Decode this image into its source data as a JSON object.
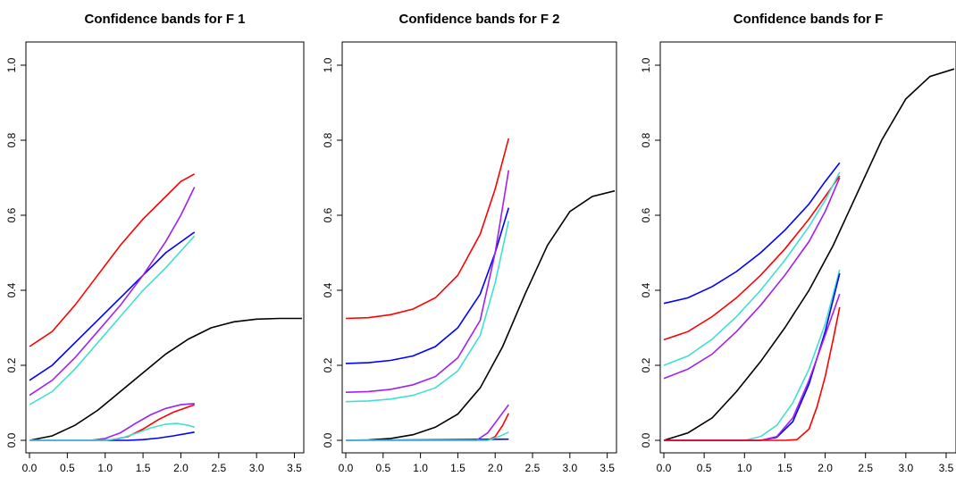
{
  "chart_data": [
    {
      "type": "line",
      "title": "Confidence bands for F 1",
      "xlim": [
        0,
        3.6
      ],
      "ylim": [
        0,
        1
      ],
      "x_ticks": [
        "0.0",
        "0.5",
        "1.0",
        "1.5",
        "2.0",
        "2.5",
        "3.0",
        "3.5"
      ],
      "y_ticks": [
        "0.0",
        "0.2",
        "0.4",
        "0.6",
        "0.8",
        "1.0"
      ],
      "series": [
        {
          "color": "#000000",
          "x": [
            0,
            0.3,
            0.6,
            0.9,
            1.2,
            1.5,
            1.8,
            2.1,
            2.4,
            2.7,
            3.0,
            3.3,
            3.6
          ],
          "y": [
            0,
            0.012,
            0.04,
            0.08,
            0.13,
            0.18,
            0.23,
            0.27,
            0.3,
            0.316,
            0.323,
            0.325,
            0.325
          ]
        },
        {
          "color": "#ff0000",
          "x": [
            0,
            0.3,
            0.6,
            0.9,
            1.2,
            1.5,
            1.8,
            2.0,
            2.18
          ],
          "y": [
            0.25,
            0.29,
            0.36,
            0.44,
            0.52,
            0.59,
            0.65,
            0.69,
            0.71
          ]
        },
        {
          "color": "#0000ff",
          "x": [
            0,
            0.3,
            0.6,
            0.9,
            1.2,
            1.5,
            1.8,
            2.18
          ],
          "y": [
            0.16,
            0.2,
            0.26,
            0.32,
            0.38,
            0.44,
            0.5,
            0.555
          ]
        },
        {
          "color": "#a020f0",
          "x": [
            0,
            0.3,
            0.6,
            0.9,
            1.2,
            1.5,
            1.8,
            2.0,
            2.18
          ],
          "y": [
            0.12,
            0.16,
            0.22,
            0.29,
            0.36,
            0.44,
            0.53,
            0.6,
            0.675
          ]
        },
        {
          "color": "#40e0d0",
          "x": [
            0,
            0.3,
            0.6,
            0.9,
            1.2,
            1.5,
            1.8,
            2.18
          ],
          "y": [
            0.095,
            0.13,
            0.19,
            0.26,
            0.33,
            0.4,
            0.46,
            0.545
          ]
        },
        {
          "color": "#ff0000",
          "x": [
            0,
            0.9,
            1.1,
            1.3,
            1.5,
            1.7,
            1.9,
            2.18
          ],
          "y": [
            0,
            0,
            0.002,
            0.01,
            0.03,
            0.055,
            0.075,
            0.095
          ]
        },
        {
          "color": "#0000ff",
          "x": [
            0,
            1.3,
            1.5,
            1.7,
            1.9,
            2.18
          ],
          "y": [
            0,
            0,
            0.002,
            0.006,
            0.012,
            0.022
          ]
        },
        {
          "color": "#a020f0",
          "x": [
            0,
            0.8,
            1.0,
            1.2,
            1.4,
            1.6,
            1.8,
            2.0,
            2.18
          ],
          "y": [
            0,
            0,
            0.005,
            0.02,
            0.045,
            0.068,
            0.085,
            0.095,
            0.098
          ]
        },
        {
          "color": "#40e0d0",
          "x": [
            0,
            1.0,
            1.2,
            1.4,
            1.6,
            1.8,
            1.95,
            2.1,
            2.18
          ],
          "y": [
            0,
            0,
            0.005,
            0.018,
            0.033,
            0.043,
            0.045,
            0.04,
            0.035
          ]
        }
      ]
    },
    {
      "type": "line",
      "title": "Confidence bands for F 2",
      "xlim": [
        0,
        3.6
      ],
      "ylim": [
        0,
        1
      ],
      "x_ticks": [
        "0.0",
        "0.5",
        "1.0",
        "1.5",
        "2.0",
        "2.5",
        "3.0",
        "3.5"
      ],
      "y_ticks": [
        "0.0",
        "0.2",
        "0.4",
        "0.6",
        "0.8",
        "1.0"
      ],
      "series": [
        {
          "color": "#000000",
          "x": [
            0,
            0.3,
            0.6,
            0.9,
            1.2,
            1.5,
            1.8,
            2.1,
            2.4,
            2.7,
            3.0,
            3.3,
            3.6
          ],
          "y": [
            0,
            0.001,
            0.005,
            0.015,
            0.035,
            0.07,
            0.14,
            0.25,
            0.39,
            0.52,
            0.61,
            0.65,
            0.665
          ]
        },
        {
          "color": "#ff0000",
          "x": [
            0,
            0.3,
            0.6,
            0.9,
            1.2,
            1.5,
            1.8,
            2.0,
            2.18
          ],
          "y": [
            0.325,
            0.327,
            0.335,
            0.35,
            0.38,
            0.44,
            0.55,
            0.67,
            0.805
          ]
        },
        {
          "color": "#0000ff",
          "x": [
            0,
            0.3,
            0.6,
            0.9,
            1.2,
            1.5,
            1.8,
            2.0,
            2.18
          ],
          "y": [
            0.205,
            0.207,
            0.213,
            0.225,
            0.25,
            0.3,
            0.39,
            0.5,
            0.62
          ]
        },
        {
          "color": "#a020f0",
          "x": [
            0,
            0.3,
            0.6,
            0.9,
            1.2,
            1.5,
            1.8,
            2.0,
            2.18
          ],
          "y": [
            0.128,
            0.13,
            0.136,
            0.148,
            0.17,
            0.22,
            0.32,
            0.5,
            0.72
          ]
        },
        {
          "color": "#40e0d0",
          "x": [
            0,
            0.3,
            0.6,
            0.9,
            1.2,
            1.5,
            1.8,
            2.0,
            2.18
          ],
          "y": [
            0.103,
            0.105,
            0.11,
            0.12,
            0.14,
            0.185,
            0.28,
            0.42,
            0.585
          ]
        },
        {
          "color": "#ff0000",
          "x": [
            0,
            1.9,
            2.0,
            2.1,
            2.18
          ],
          "y": [
            0,
            0,
            0.01,
            0.04,
            0.072
          ]
        },
        {
          "color": "#0000ff",
          "x": [
            0,
            2.18
          ],
          "y": [
            0,
            0.003
          ]
        },
        {
          "color": "#a020f0",
          "x": [
            0,
            1.75,
            1.9,
            2.05,
            2.18
          ],
          "y": [
            0,
            0,
            0.02,
            0.06,
            0.095
          ]
        },
        {
          "color": "#40e0d0",
          "x": [
            0,
            1.9,
            2.05,
            2.18
          ],
          "y": [
            0,
            0,
            0.01,
            0.022
          ]
        }
      ]
    },
    {
      "type": "line",
      "title": "Confidence bands for F",
      "xlim": [
        0,
        3.6
      ],
      "ylim": [
        0,
        1
      ],
      "x_ticks": [
        "0.0",
        "0.5",
        "1.0",
        "1.5",
        "2.0",
        "2.5",
        "3.0",
        "3.5"
      ],
      "y_ticks": [
        "0.0",
        "0.2",
        "0.4",
        "0.6",
        "0.8",
        "1.0"
      ],
      "series": [
        {
          "color": "#000000",
          "x": [
            0,
            0.3,
            0.6,
            0.9,
            1.2,
            1.5,
            1.8,
            2.1,
            2.4,
            2.7,
            3.0,
            3.3,
            3.6
          ],
          "y": [
            0,
            0.02,
            0.06,
            0.13,
            0.21,
            0.3,
            0.4,
            0.52,
            0.66,
            0.8,
            0.91,
            0.97,
            0.99
          ]
        },
        {
          "color": "#0000ff",
          "x": [
            0,
            0.3,
            0.6,
            0.9,
            1.2,
            1.5,
            1.8,
            2.0,
            2.18
          ],
          "y": [
            0.365,
            0.38,
            0.41,
            0.45,
            0.5,
            0.56,
            0.63,
            0.69,
            0.74
          ]
        },
        {
          "color": "#ff0000",
          "x": [
            0,
            0.3,
            0.6,
            0.9,
            1.2,
            1.5,
            1.8,
            2.0,
            2.18
          ],
          "y": [
            0.268,
            0.29,
            0.33,
            0.38,
            0.44,
            0.51,
            0.59,
            0.65,
            0.705
          ]
        },
        {
          "color": "#40e0d0",
          "x": [
            0,
            0.3,
            0.6,
            0.9,
            1.2,
            1.5,
            1.8,
            2.0,
            2.18
          ],
          "y": [
            0.2,
            0.225,
            0.27,
            0.33,
            0.4,
            0.48,
            0.57,
            0.64,
            0.715
          ]
        },
        {
          "color": "#a020f0",
          "x": [
            0,
            0.3,
            0.6,
            0.9,
            1.2,
            1.5,
            1.8,
            2.0,
            2.18
          ],
          "y": [
            0.165,
            0.19,
            0.23,
            0.29,
            0.36,
            0.44,
            0.53,
            0.61,
            0.7
          ]
        },
        {
          "color": "#40e0d0",
          "x": [
            0,
            1.0,
            1.2,
            1.4,
            1.6,
            1.8,
            2.0,
            2.18
          ],
          "y": [
            0,
            0,
            0.01,
            0.04,
            0.1,
            0.19,
            0.31,
            0.455
          ]
        },
        {
          "color": "#0000ff",
          "x": [
            0,
            1.2,
            1.4,
            1.6,
            1.8,
            2.0,
            2.18
          ],
          "y": [
            0,
            0,
            0.008,
            0.05,
            0.15,
            0.29,
            0.445
          ]
        },
        {
          "color": "#a020f0",
          "x": [
            0,
            1.2,
            1.4,
            1.6,
            1.8,
            2.0,
            2.18
          ],
          "y": [
            0,
            0,
            0.01,
            0.06,
            0.16,
            0.28,
            0.39
          ]
        },
        {
          "color": "#ff0000",
          "x": [
            0,
            1.5,
            1.65,
            1.8,
            1.9,
            2.0,
            2.1,
            2.18
          ],
          "y": [
            0,
            0,
            0.002,
            0.03,
            0.09,
            0.17,
            0.27,
            0.355
          ]
        }
      ]
    }
  ]
}
